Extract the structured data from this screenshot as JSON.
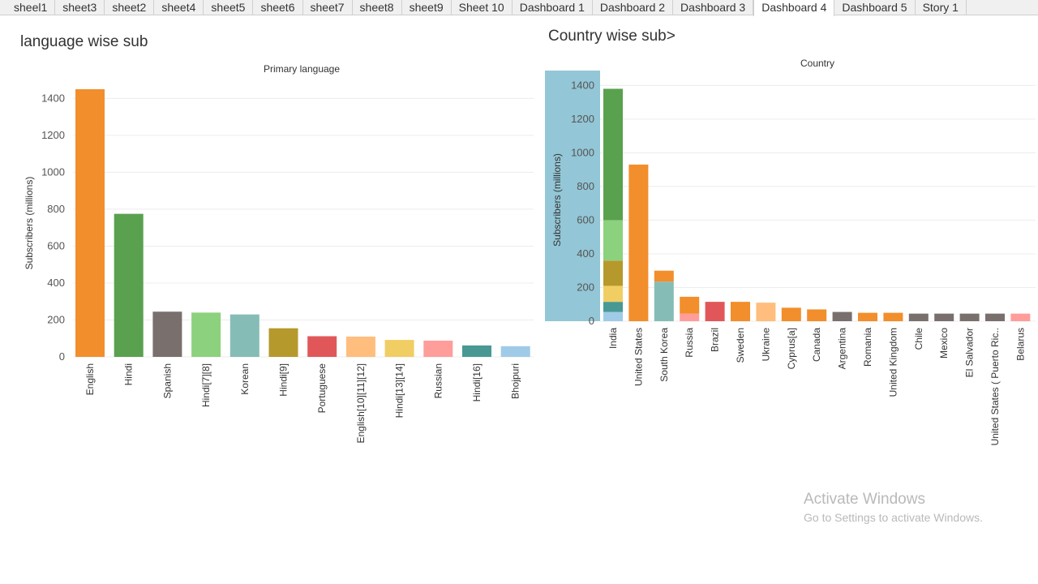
{
  "tabs": [
    {
      "label": "sheel1"
    },
    {
      "label": "sheet3"
    },
    {
      "label": "sheet2"
    },
    {
      "label": "sheet4"
    },
    {
      "label": "sheet5"
    },
    {
      "label": "sheet6"
    },
    {
      "label": "sheet7"
    },
    {
      "label": "sheet8"
    },
    {
      "label": "sheet9"
    },
    {
      "label": "Sheet 10"
    },
    {
      "label": "Dashboard 1"
    },
    {
      "label": "Dashboard 2"
    },
    {
      "label": "Dashboard 3"
    },
    {
      "label": "Dashboard 4"
    },
    {
      "label": "Dashboard 5"
    },
    {
      "label": "Story 1"
    }
  ],
  "active_tab": "Dashboard 4",
  "left_title": "language wise sub",
  "right_title": "Country wise sub>",
  "watermark": {
    "line1": "Activate Windows",
    "line2": "Go to Settings to activate Windows."
  },
  "chart_data": [
    {
      "type": "bar",
      "title": "Primary language",
      "ylabel": "Subscribers (millions)",
      "ylim": [
        0,
        1450
      ],
      "yticks": [
        0,
        200,
        400,
        600,
        800,
        1000,
        1200,
        1400
      ],
      "grid": true,
      "categories": [
        "English",
        "Hindi",
        "Spanish",
        "Hindi[7][8]",
        "Korean",
        "Hindi[9]",
        "Portuguese",
        "English[10][11][12]",
        "Hindi[13][14]",
        "Russian",
        "Hindi[16]",
        "Bhojpuri"
      ],
      "values": [
        1450,
        775,
        245,
        240,
        230,
        155,
        112,
        110,
        92,
        88,
        62,
        58
      ],
      "colors": [
        "#f28e2b",
        "#59a14f",
        "#79706e",
        "#8cd17d",
        "#86bcb6",
        "#b6992d",
        "#e15759",
        "#ffbe7d",
        "#f1ce63",
        "#ff9d9a",
        "#499894",
        "#a0cbe8"
      ]
    },
    {
      "type": "bar",
      "stacked": true,
      "title": "Country",
      "ylabel": "Subscribers (millions)",
      "ylim": [
        0,
        1440
      ],
      "yticks": [
        0,
        200,
        400,
        600,
        800,
        1000,
        1200,
        1400
      ],
      "grid": true,
      "categories": [
        "India",
        "United States",
        "South Korea",
        "Russia",
        "Brazil",
        "Sweden",
        "Ukraine",
        "Cyprus[a]",
        "Canada",
        "Argentina",
        "Romania",
        "United Kingdom",
        "Chile",
        "Mexico",
        "El Salvador",
        "United States ( Puerto Ric..",
        "Belarus"
      ],
      "stacks": [
        [
          {
            "value": 55,
            "color": "#a0cbe8"
          },
          {
            "value": 60,
            "color": "#499894"
          },
          {
            "value": 95,
            "color": "#f1ce63"
          },
          {
            "value": 150,
            "color": "#b6992d"
          },
          {
            "value": 240,
            "color": "#8cd17d"
          },
          {
            "value": 780,
            "color": "#59a14f"
          }
        ],
        [
          {
            "value": 930,
            "color": "#f28e2b"
          }
        ],
        [
          {
            "value": 235,
            "color": "#86bcb6"
          },
          {
            "value": 65,
            "color": "#f28e2b"
          }
        ],
        [
          {
            "value": 45,
            "color": "#ff9d9a"
          },
          {
            "value": 100,
            "color": "#f28e2b"
          }
        ],
        [
          {
            "value": 115,
            "color": "#e15759"
          }
        ],
        [
          {
            "value": 115,
            "color": "#f28e2b"
          }
        ],
        [
          {
            "value": 110,
            "color": "#ffbe7d"
          }
        ],
        [
          {
            "value": 80,
            "color": "#f28e2b"
          }
        ],
        [
          {
            "value": 70,
            "color": "#f28e2b"
          }
        ],
        [
          {
            "value": 55,
            "color": "#79706e"
          }
        ],
        [
          {
            "value": 50,
            "color": "#f28e2b"
          }
        ],
        [
          {
            "value": 50,
            "color": "#f28e2b"
          }
        ],
        [
          {
            "value": 45,
            "color": "#79706e"
          }
        ],
        [
          {
            "value": 45,
            "color": "#79706e"
          }
        ],
        [
          {
            "value": 45,
            "color": "#79706e"
          }
        ],
        [
          {
            "value": 45,
            "color": "#79706e"
          }
        ],
        [
          {
            "value": 45,
            "color": "#ff9d9a"
          }
        ]
      ],
      "axis_highlight_color": "#93c6d6"
    }
  ]
}
